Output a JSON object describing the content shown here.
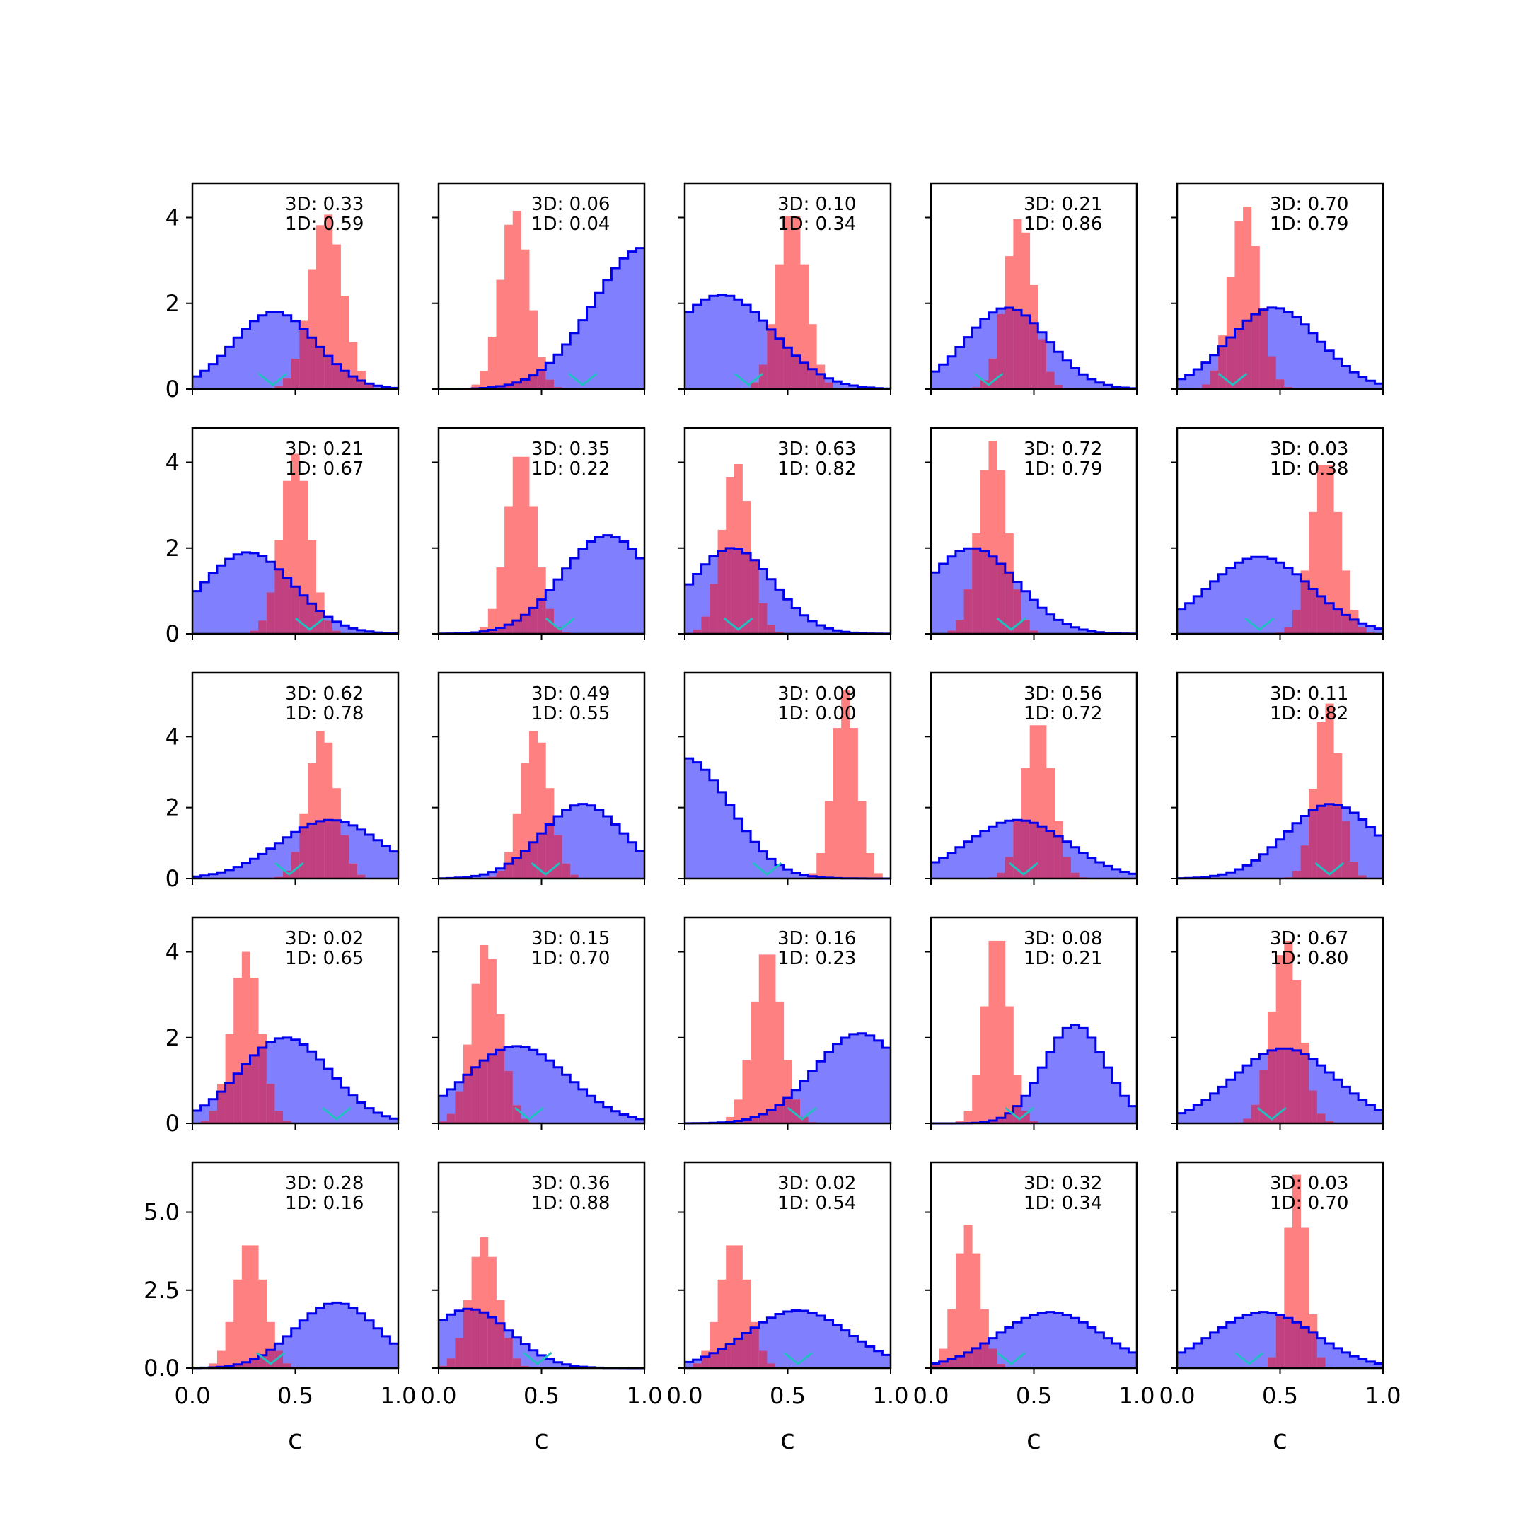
{
  "figure": {
    "rows": 5,
    "cols": 5,
    "xlabel": "c",
    "colors": {
      "blue_fill": "#8080ff",
      "blue_line": "#0000ee",
      "red_fill": "#ff8080",
      "overlap": "#c04080",
      "marker": "#20c0c0",
      "axis": "#000000"
    },
    "legend_placement": "top-right text per panel",
    "row_yticks": [
      {
        "ymax": 4.8,
        "ticks": [
          "0",
          "2",
          "4"
        ],
        "values": [
          0,
          2,
          4
        ]
      },
      {
        "ymax": 4.8,
        "ticks": [
          "0",
          "2",
          "4"
        ],
        "values": [
          0,
          2,
          4
        ]
      },
      {
        "ymax": 5.8,
        "ticks": [
          "0",
          "2",
          "4"
        ],
        "values": [
          0,
          2,
          4
        ]
      },
      {
        "ymax": 4.8,
        "ticks": [
          "0",
          "2",
          "4"
        ],
        "values": [
          0,
          2,
          4
        ]
      },
      {
        "ymax": 6.6,
        "ticks": [
          "0.0",
          "2.5",
          "5.0"
        ],
        "values": [
          0,
          2.5,
          5
        ]
      }
    ],
    "xticks": {
      "labels": [
        "0.0",
        "0.5",
        "1.0"
      ],
      "values": [
        0,
        0.5,
        1.0
      ]
    }
  },
  "chart_data": [
    {
      "type": "histogram",
      "row": 0,
      "col": 0,
      "xlim": [
        0,
        1
      ],
      "ylim": [
        0,
        4.8
      ],
      "label_3d": "3D: 0.33",
      "label_1d": "1D: 0.59",
      "blue": {
        "mode": 0.4,
        "spread": 0.2,
        "peak": 1.8,
        "tail": 0.1
      },
      "red": {
        "mode": 0.65,
        "spread": 0.08,
        "peak": 4.1
      },
      "marker": 0.39
    },
    {
      "type": "histogram",
      "row": 0,
      "col": 1,
      "xlim": [
        0,
        1
      ],
      "ylim": [
        0,
        4.8
      ],
      "label_3d": "3D: 0.06",
      "label_1d": "1D: 0.04",
      "blue": {
        "mode": 1.0,
        "spread": 0.25,
        "peak": 3.3,
        "tail": 0.0
      },
      "red": {
        "mode": 0.37,
        "spread": 0.07,
        "peak": 4.2
      },
      "marker": 0.7
    },
    {
      "type": "histogram",
      "row": 0,
      "col": 2,
      "xlim": [
        0,
        1
      ],
      "ylim": [
        0,
        4.8
      ],
      "label_3d": "3D: 0.10",
      "label_1d": "1D: 0.34",
      "blue": {
        "mode": 0.18,
        "spread": 0.25,
        "peak": 2.2,
        "tail": 1.3
      },
      "red": {
        "mode": 0.52,
        "spread": 0.07,
        "peak": 4.2
      },
      "marker": 0.31
    },
    {
      "type": "histogram",
      "row": 0,
      "col": 3,
      "xlim": [
        0,
        1
      ],
      "ylim": [
        0,
        4.8
      ],
      "label_3d": "3D: 0.21",
      "label_1d": "1D: 0.86",
      "blue": {
        "mode": 0.37,
        "spread": 0.2,
        "peak": 1.9,
        "tail": 0.2
      },
      "red": {
        "mode": 0.43,
        "spread": 0.07,
        "peak": 4.0
      },
      "marker": 0.28
    },
    {
      "type": "histogram",
      "row": 0,
      "col": 4,
      "xlim": [
        0,
        1
      ],
      "ylim": [
        0,
        4.8
      ],
      "label_3d": "3D: 0.70",
      "label_1d": "1D: 0.79",
      "blue": {
        "mode": 0.47,
        "spread": 0.22,
        "peak": 1.9,
        "tail": 0.3
      },
      "red": {
        "mode": 0.33,
        "spread": 0.07,
        "peak": 4.3
      },
      "marker": 0.27
    },
    {
      "type": "histogram",
      "row": 1,
      "col": 0,
      "xlim": [
        0,
        1
      ],
      "ylim": [
        0,
        4.8
      ],
      "label_3d": "3D: 0.21",
      "label_1d": "1D: 0.67",
      "blue": {
        "mode": 0.27,
        "spread": 0.22,
        "peak": 1.9,
        "tail": 0.4
      },
      "red": {
        "mode": 0.5,
        "spread": 0.07,
        "peak": 4.2
      },
      "marker": 0.57
    },
    {
      "type": "histogram",
      "row": 1,
      "col": 1,
      "xlim": [
        0,
        1
      ],
      "ylim": [
        0,
        4.8
      ],
      "label_3d": "3D: 0.35",
      "label_1d": "1D: 0.22",
      "blue": {
        "mode": 0.82,
        "spread": 0.22,
        "peak": 2.3,
        "tail": 0.0
      },
      "red": {
        "mode": 0.4,
        "spread": 0.07,
        "peak": 4.3
      },
      "marker": 0.59
    },
    {
      "type": "histogram",
      "row": 1,
      "col": 2,
      "xlim": [
        0,
        1
      ],
      "ylim": [
        0,
        4.8
      ],
      "label_3d": "3D: 0.63",
      "label_1d": "1D: 0.82",
      "blue": {
        "mode": 0.23,
        "spread": 0.2,
        "peak": 2.0,
        "tail": 1.0
      },
      "red": {
        "mode": 0.25,
        "spread": 0.07,
        "peak": 4.0
      },
      "marker": 0.26
    },
    {
      "type": "histogram",
      "row": 1,
      "col": 3,
      "xlim": [
        0,
        1
      ],
      "ylim": [
        0,
        4.8
      ],
      "label_3d": "3D: 0.72",
      "label_1d": "1D: 0.79",
      "blue": {
        "mode": 0.2,
        "spread": 0.22,
        "peak": 2.0,
        "tail": 0.6
      },
      "red": {
        "mode": 0.3,
        "spread": 0.07,
        "peak": 4.5
      },
      "marker": 0.39
    },
    {
      "type": "histogram",
      "row": 1,
      "col": 4,
      "xlim": [
        0,
        1
      ],
      "ylim": [
        0,
        4.8
      ],
      "label_3d": "3D: 0.03",
      "label_1d": "1D: 0.38",
      "blue": {
        "mode": 0.4,
        "spread": 0.25,
        "peak": 1.8,
        "tail": 0.5
      },
      "red": {
        "mode": 0.72,
        "spread": 0.07,
        "peak": 4.1
      },
      "marker": 0.4
    },
    {
      "type": "histogram",
      "row": 2,
      "col": 0,
      "xlim": [
        0,
        1
      ],
      "ylim": [
        0,
        5.8
      ],
      "label_3d": "3D: 0.62",
      "label_1d": "1D: 0.78",
      "blue": {
        "mode": 0.67,
        "spread": 0.25,
        "peak": 1.65,
        "tail": 0.05
      },
      "red": {
        "mode": 0.63,
        "spread": 0.07,
        "peak": 4.2
      },
      "marker": 0.47
    },
    {
      "type": "histogram",
      "row": 2,
      "col": 1,
      "xlim": [
        0,
        1
      ],
      "ylim": [
        0,
        5.8
      ],
      "label_3d": "3D: 0.49",
      "label_1d": "1D: 0.55",
      "blue": {
        "mode": 0.7,
        "spread": 0.2,
        "peak": 2.1,
        "tail": 0.05
      },
      "red": {
        "mode": 0.47,
        "spread": 0.07,
        "peak": 4.2
      },
      "marker": 0.52
    },
    {
      "type": "histogram",
      "row": 2,
      "col": 2,
      "xlim": [
        0,
        1
      ],
      "ylim": [
        0,
        5.8
      ],
      "label_3d": "3D: 0.09",
      "label_1d": "1D: 0.00",
      "blue": {
        "mode": 0.0,
        "spread": 0.22,
        "peak": 3.4,
        "tail": 0.0
      },
      "red": {
        "mode": 0.78,
        "spread": 0.06,
        "peak": 5.3
      },
      "marker": 0.4
    },
    {
      "type": "histogram",
      "row": 2,
      "col": 3,
      "xlim": [
        0,
        1
      ],
      "ylim": [
        0,
        5.8
      ],
      "label_3d": "3D: 0.56",
      "label_1d": "1D: 0.72",
      "blue": {
        "mode": 0.42,
        "spread": 0.25,
        "peak": 1.65,
        "tail": 0.4
      },
      "red": {
        "mode": 0.52,
        "spread": 0.07,
        "peak": 4.5
      },
      "marker": 0.45
    },
    {
      "type": "histogram",
      "row": 2,
      "col": 4,
      "xlim": [
        0,
        1
      ],
      "ylim": [
        0,
        5.8
      ],
      "label_3d": "3D: 0.11",
      "label_1d": "1D: 0.82",
      "blue": {
        "mode": 0.75,
        "spread": 0.22,
        "peak": 2.1,
        "tail": 0.0
      },
      "red": {
        "mode": 0.73,
        "spread": 0.06,
        "peak": 5.0
      },
      "marker": 0.74
    },
    {
      "type": "histogram",
      "row": 3,
      "col": 0,
      "xlim": [
        0,
        1
      ],
      "ylim": [
        0,
        4.8
      ],
      "label_3d": "3D: 0.02",
      "label_1d": "1D: 0.65",
      "blue": {
        "mode": 0.45,
        "spread": 0.22,
        "peak": 2.0,
        "tail": 0.05
      },
      "red": {
        "mode": 0.26,
        "spread": 0.07,
        "peak": 4.0
      },
      "marker": 0.7
    },
    {
      "type": "histogram",
      "row": 3,
      "col": 1,
      "xlim": [
        0,
        1
      ],
      "ylim": [
        0,
        4.8
      ],
      "label_3d": "3D: 0.15",
      "label_1d": "1D: 0.70",
      "blue": {
        "mode": 0.38,
        "spread": 0.25,
        "peak": 1.8,
        "tail": 0.3
      },
      "red": {
        "mode": 0.23,
        "spread": 0.07,
        "peak": 4.2
      },
      "marker": 0.44
    },
    {
      "type": "histogram",
      "row": 3,
      "col": 2,
      "xlim": [
        0,
        1
      ],
      "ylim": [
        0,
        4.8
      ],
      "label_3d": "3D: 0.16",
      "label_1d": "1D: 0.23",
      "blue": {
        "mode": 0.85,
        "spread": 0.22,
        "peak": 2.1,
        "tail": 0.0
      },
      "red": {
        "mode": 0.4,
        "spread": 0.07,
        "peak": 4.1
      },
      "marker": 0.57
    },
    {
      "type": "histogram",
      "row": 3,
      "col": 3,
      "xlim": [
        0,
        1
      ],
      "ylim": [
        0,
        4.8
      ],
      "label_3d": "3D: 0.08",
      "label_1d": "1D: 0.21",
      "blue": {
        "mode": 0.7,
        "spread": 0.15,
        "peak": 2.3,
        "tail": 0.0
      },
      "red": {
        "mode": 0.32,
        "spread": 0.06,
        "peak": 4.5
      },
      "marker": 0.43
    },
    {
      "type": "histogram",
      "row": 3,
      "col": 4,
      "xlim": [
        0,
        1
      ],
      "ylim": [
        0,
        4.8
      ],
      "label_3d": "3D: 0.67",
      "label_1d": "1D: 0.80",
      "blue": {
        "mode": 0.52,
        "spread": 0.25,
        "peak": 1.75,
        "tail": 0.2
      },
      "red": {
        "mode": 0.53,
        "spread": 0.07,
        "peak": 4.3
      },
      "marker": 0.46
    },
    {
      "type": "histogram",
      "row": 4,
      "col": 0,
      "xlim": [
        0,
        1
      ],
      "ylim": [
        0,
        6.6
      ],
      "label_3d": "3D: 0.28",
      "label_1d": "1D: 0.16",
      "blue": {
        "mode": 0.7,
        "spread": 0.2,
        "peak": 2.1,
        "tail": 0.05
      },
      "red": {
        "mode": 0.28,
        "spread": 0.07,
        "peak": 4.1
      },
      "marker": 0.38
    },
    {
      "type": "histogram",
      "row": 4,
      "col": 1,
      "xlim": [
        0,
        1
      ],
      "ylim": [
        0,
        6.6
      ],
      "label_3d": "3D: 0.36",
      "label_1d": "1D: 0.88",
      "blue": {
        "mode": 0.15,
        "spread": 0.2,
        "peak": 1.9,
        "tail": 1.5
      },
      "red": {
        "mode": 0.22,
        "spread": 0.07,
        "peak": 4.2
      },
      "marker": 0.48
    },
    {
      "type": "histogram",
      "row": 4,
      "col": 2,
      "xlim": [
        0,
        1
      ],
      "ylim": [
        0,
        6.6
      ],
      "label_3d": "3D: 0.02",
      "label_1d": "1D: 0.54",
      "blue": {
        "mode": 0.55,
        "spread": 0.25,
        "peak": 1.85,
        "tail": 0.2
      },
      "red": {
        "mode": 0.24,
        "spread": 0.07,
        "peak": 4.1
      },
      "marker": 0.55
    },
    {
      "type": "histogram",
      "row": 4,
      "col": 3,
      "xlim": [
        0,
        1
      ],
      "ylim": [
        0,
        6.6
      ],
      "label_3d": "3D: 0.32",
      "label_1d": "1D: 0.34",
      "blue": {
        "mode": 0.58,
        "spread": 0.25,
        "peak": 1.8,
        "tail": 0.1
      },
      "red": {
        "mode": 0.18,
        "spread": 0.06,
        "peak": 4.6
      },
      "marker": 0.39
    },
    {
      "type": "histogram",
      "row": 4,
      "col": 4,
      "xlim": [
        0,
        1
      ],
      "ylim": [
        0,
        6.6
      ],
      "label_3d": "3D: 0.03",
      "label_1d": "1D: 0.70",
      "blue": {
        "mode": 0.42,
        "spread": 0.25,
        "peak": 1.8,
        "tail": 0.3
      },
      "red": {
        "mode": 0.58,
        "spread": 0.05,
        "peak": 6.2
      },
      "marker": 0.35
    }
  ]
}
